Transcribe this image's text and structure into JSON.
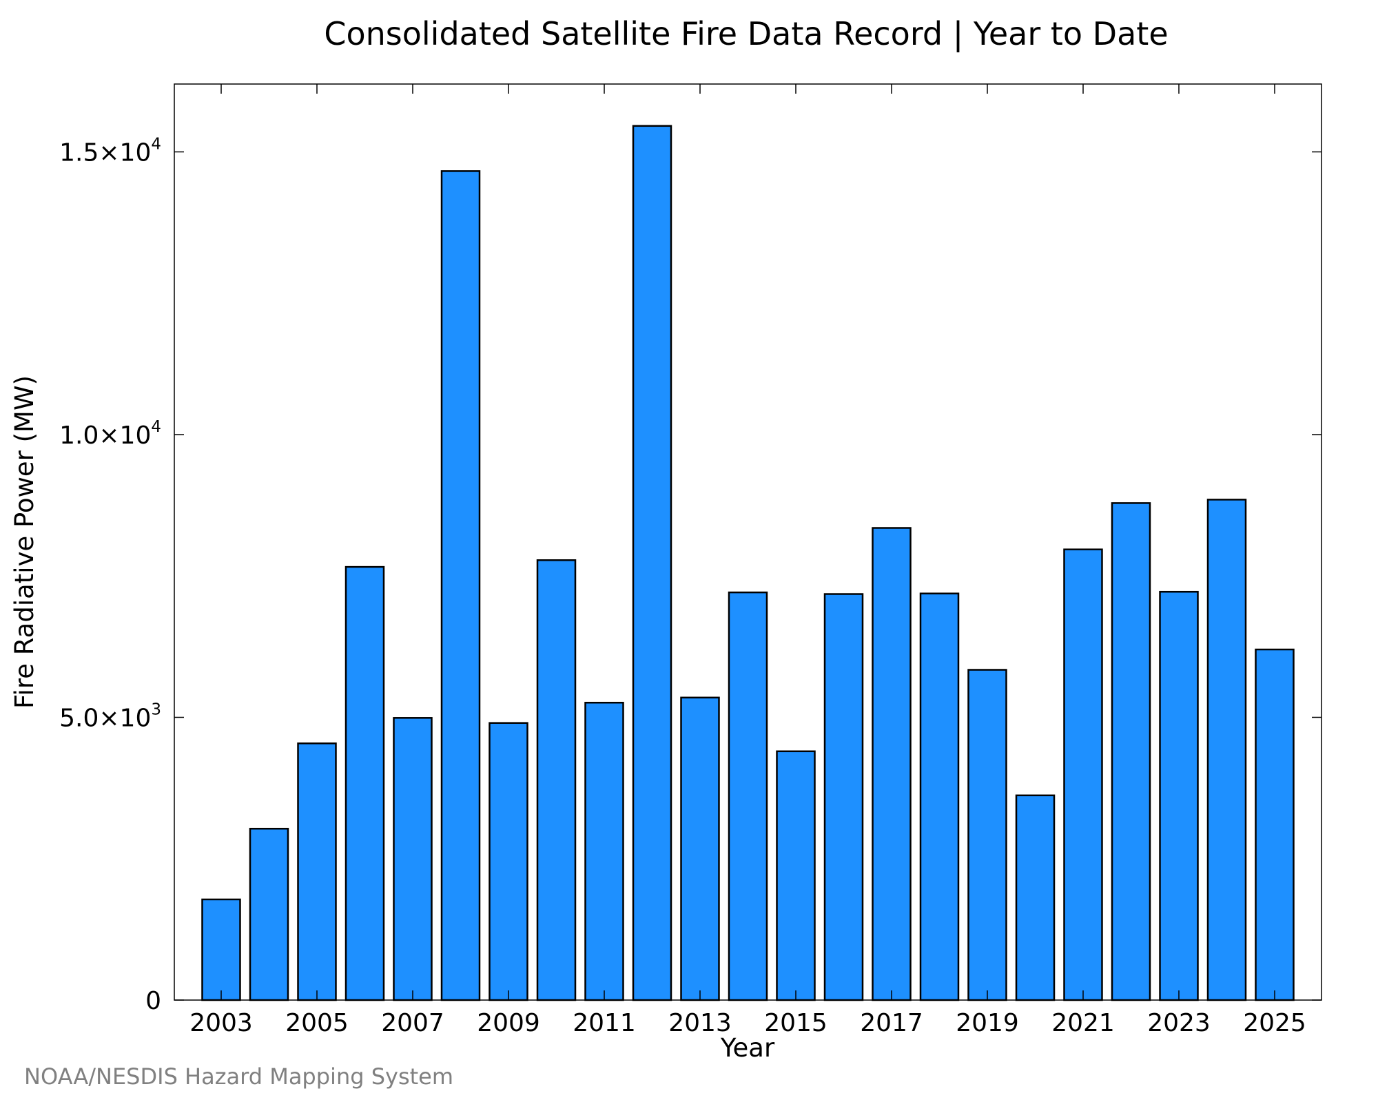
{
  "chart_data": {
    "type": "bar",
    "title": "Consolidated Satellite Fire Data Record | Year to Date",
    "xlabel": "Year",
    "ylabel": "Fire Radiative Power (MW)",
    "categories": [
      "2003",
      "2004",
      "2005",
      "2006",
      "2007",
      "2008",
      "2009",
      "2010",
      "2011",
      "2012",
      "2013",
      "2014",
      "2015",
      "2016",
      "2017",
      "2018",
      "2019",
      "2020",
      "2021",
      "2022",
      "2023",
      "2024",
      "2025"
    ],
    "values": [
      1780,
      3030,
      4540,
      7660,
      4990,
      14660,
      4900,
      7780,
      5260,
      15460,
      5350,
      7210,
      4400,
      7180,
      8350,
      7190,
      5840,
      3620,
      7970,
      8790,
      7220,
      8850,
      6200
    ],
    "xticks": [
      "2003",
      "2005",
      "2007",
      "2009",
      "2011",
      "2013",
      "2015",
      "2017",
      "2019",
      "2021",
      "2023",
      "2025"
    ],
    "yticks": [
      {
        "value": 0,
        "mantissa": "0",
        "exponent": ""
      },
      {
        "value": 5000,
        "mantissa": "5.0×10",
        "exponent": "3"
      },
      {
        "value": 10000,
        "mantissa": "1.0×10",
        "exponent": "4"
      },
      {
        "value": 15000,
        "mantissa": "1.5×10",
        "exponent": "4"
      }
    ],
    "ylim": [
      0,
      16200
    ],
    "grid": false,
    "bar_color": "#1e90ff",
    "bar_edge_color": "#000000"
  },
  "footer": {
    "source": "NOAA/NESDIS Hazard Mapping System"
  }
}
